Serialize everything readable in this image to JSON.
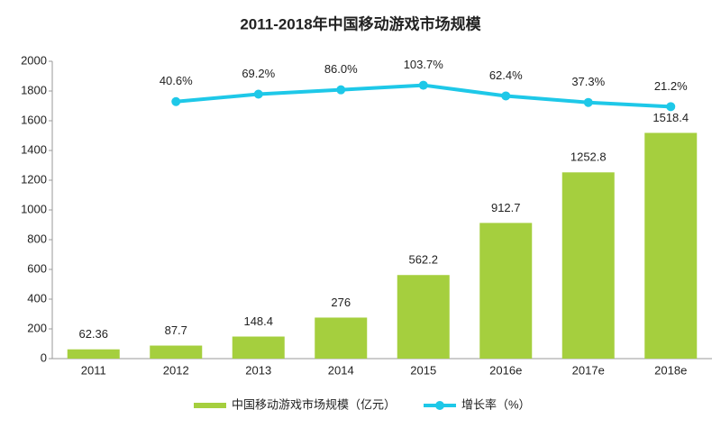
{
  "chart_data": {
    "type": "bar_line",
    "title": "2011-2018年中国移动游戏市场规模",
    "categories": [
      "2011",
      "2012",
      "2013",
      "2014",
      "2015",
      "2016e",
      "2017e",
      "2018e"
    ],
    "series": [
      {
        "name": "中国移动游戏市场规模（亿元）",
        "type": "bar",
        "color": "#a5cf3e",
        "values": [
          62.36,
          87.7,
          148.4,
          276,
          562.2,
          912.7,
          1252.8,
          1518.4
        ]
      },
      {
        "name": "增长率（%）",
        "type": "line",
        "axis": "y2",
        "color": "#1ec8e8",
        "values": [
          null,
          40.6,
          69.2,
          86.0,
          103.7,
          62.4,
          37.3,
          21.2
        ],
        "value_labels": [
          null,
          "40.6%",
          "69.2%",
          "86.0%",
          "103.7%",
          "62.4%",
          "37.3%",
          "21.2%"
        ]
      }
    ],
    "ylim": [
      0,
      2000
    ],
    "yticks": [
      0,
      200,
      400,
      600,
      800,
      1000,
      1200,
      1400,
      1600,
      1800,
      2000
    ],
    "y2lim": [
      -950,
      196
    ],
    "legend": "bottom"
  }
}
